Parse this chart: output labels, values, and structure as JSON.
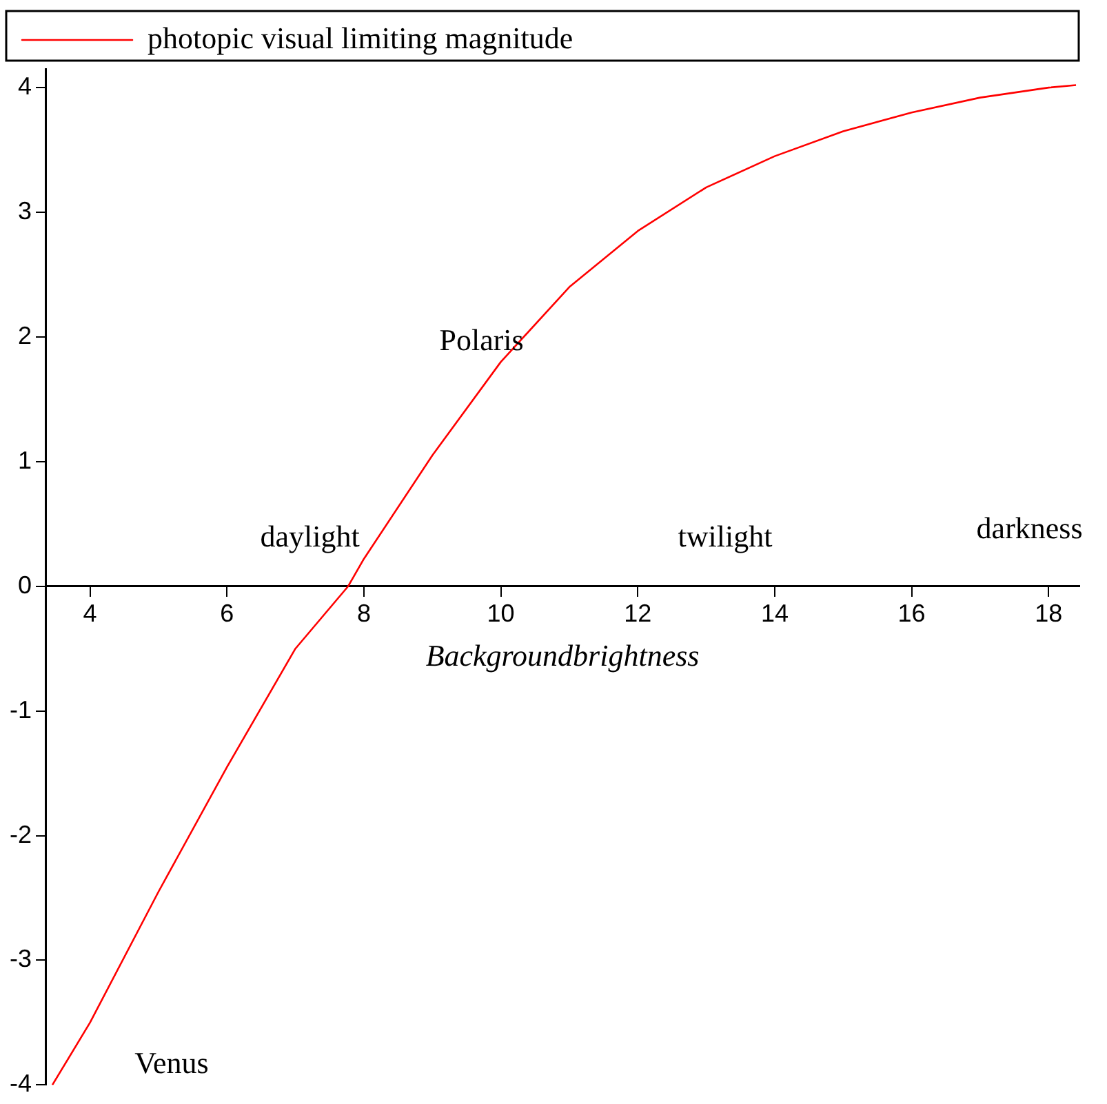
{
  "chart_data": {
    "type": "line",
    "xlabel": "Backgroundbrightness",
    "x": [
      3.45,
      4,
      5,
      6,
      7,
      7.77,
      8,
      9,
      10,
      11,
      12,
      13,
      14,
      15,
      16,
      17,
      18,
      18.4
    ],
    "series": [
      {
        "name": "photopic visual limiting magnitude",
        "color": "#ff0000",
        "values": [
          -4.0,
          -3.5,
          -2.45,
          -1.45,
          -0.5,
          0,
          0.22,
          1.05,
          1.8,
          2.4,
          2.85,
          3.2,
          3.45,
          3.65,
          3.8,
          3.92,
          4.0,
          4.02
        ]
      }
    ],
    "xlim": [
      3.35,
      18.45
    ],
    "xticks": [
      4,
      6,
      8,
      10,
      12,
      14,
      16,
      18
    ],
    "ylim": [
      -4,
      4.15
    ],
    "yticks": [
      -4,
      -3,
      -2,
      -1,
      0,
      1,
      2,
      3,
      4
    ],
    "annotations": [
      "Polaris",
      "daylight",
      "twilight",
      "darkness",
      "Venus"
    ],
    "legend": "top",
    "grid": false,
    "marker": "none",
    "line_style": "solid"
  }
}
